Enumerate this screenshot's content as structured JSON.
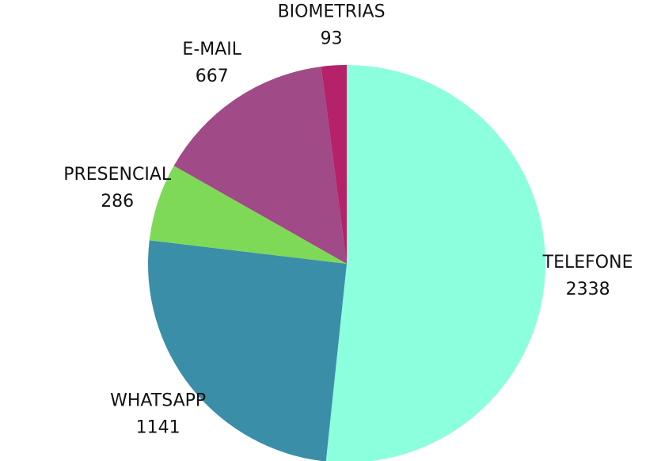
{
  "chart_data": {
    "type": "pie",
    "categories": [
      "TELEFONE",
      "WHATSAPP",
      "PRESENCIAL",
      "E-MAIL",
      "BIOMETRIAS"
    ],
    "values": [
      2338,
      1141,
      286,
      667,
      93
    ],
    "colors": [
      "#8cffdc",
      "#3a8ea8",
      "#7ed957",
      "#a04a87",
      "#b5226a"
    ]
  }
}
